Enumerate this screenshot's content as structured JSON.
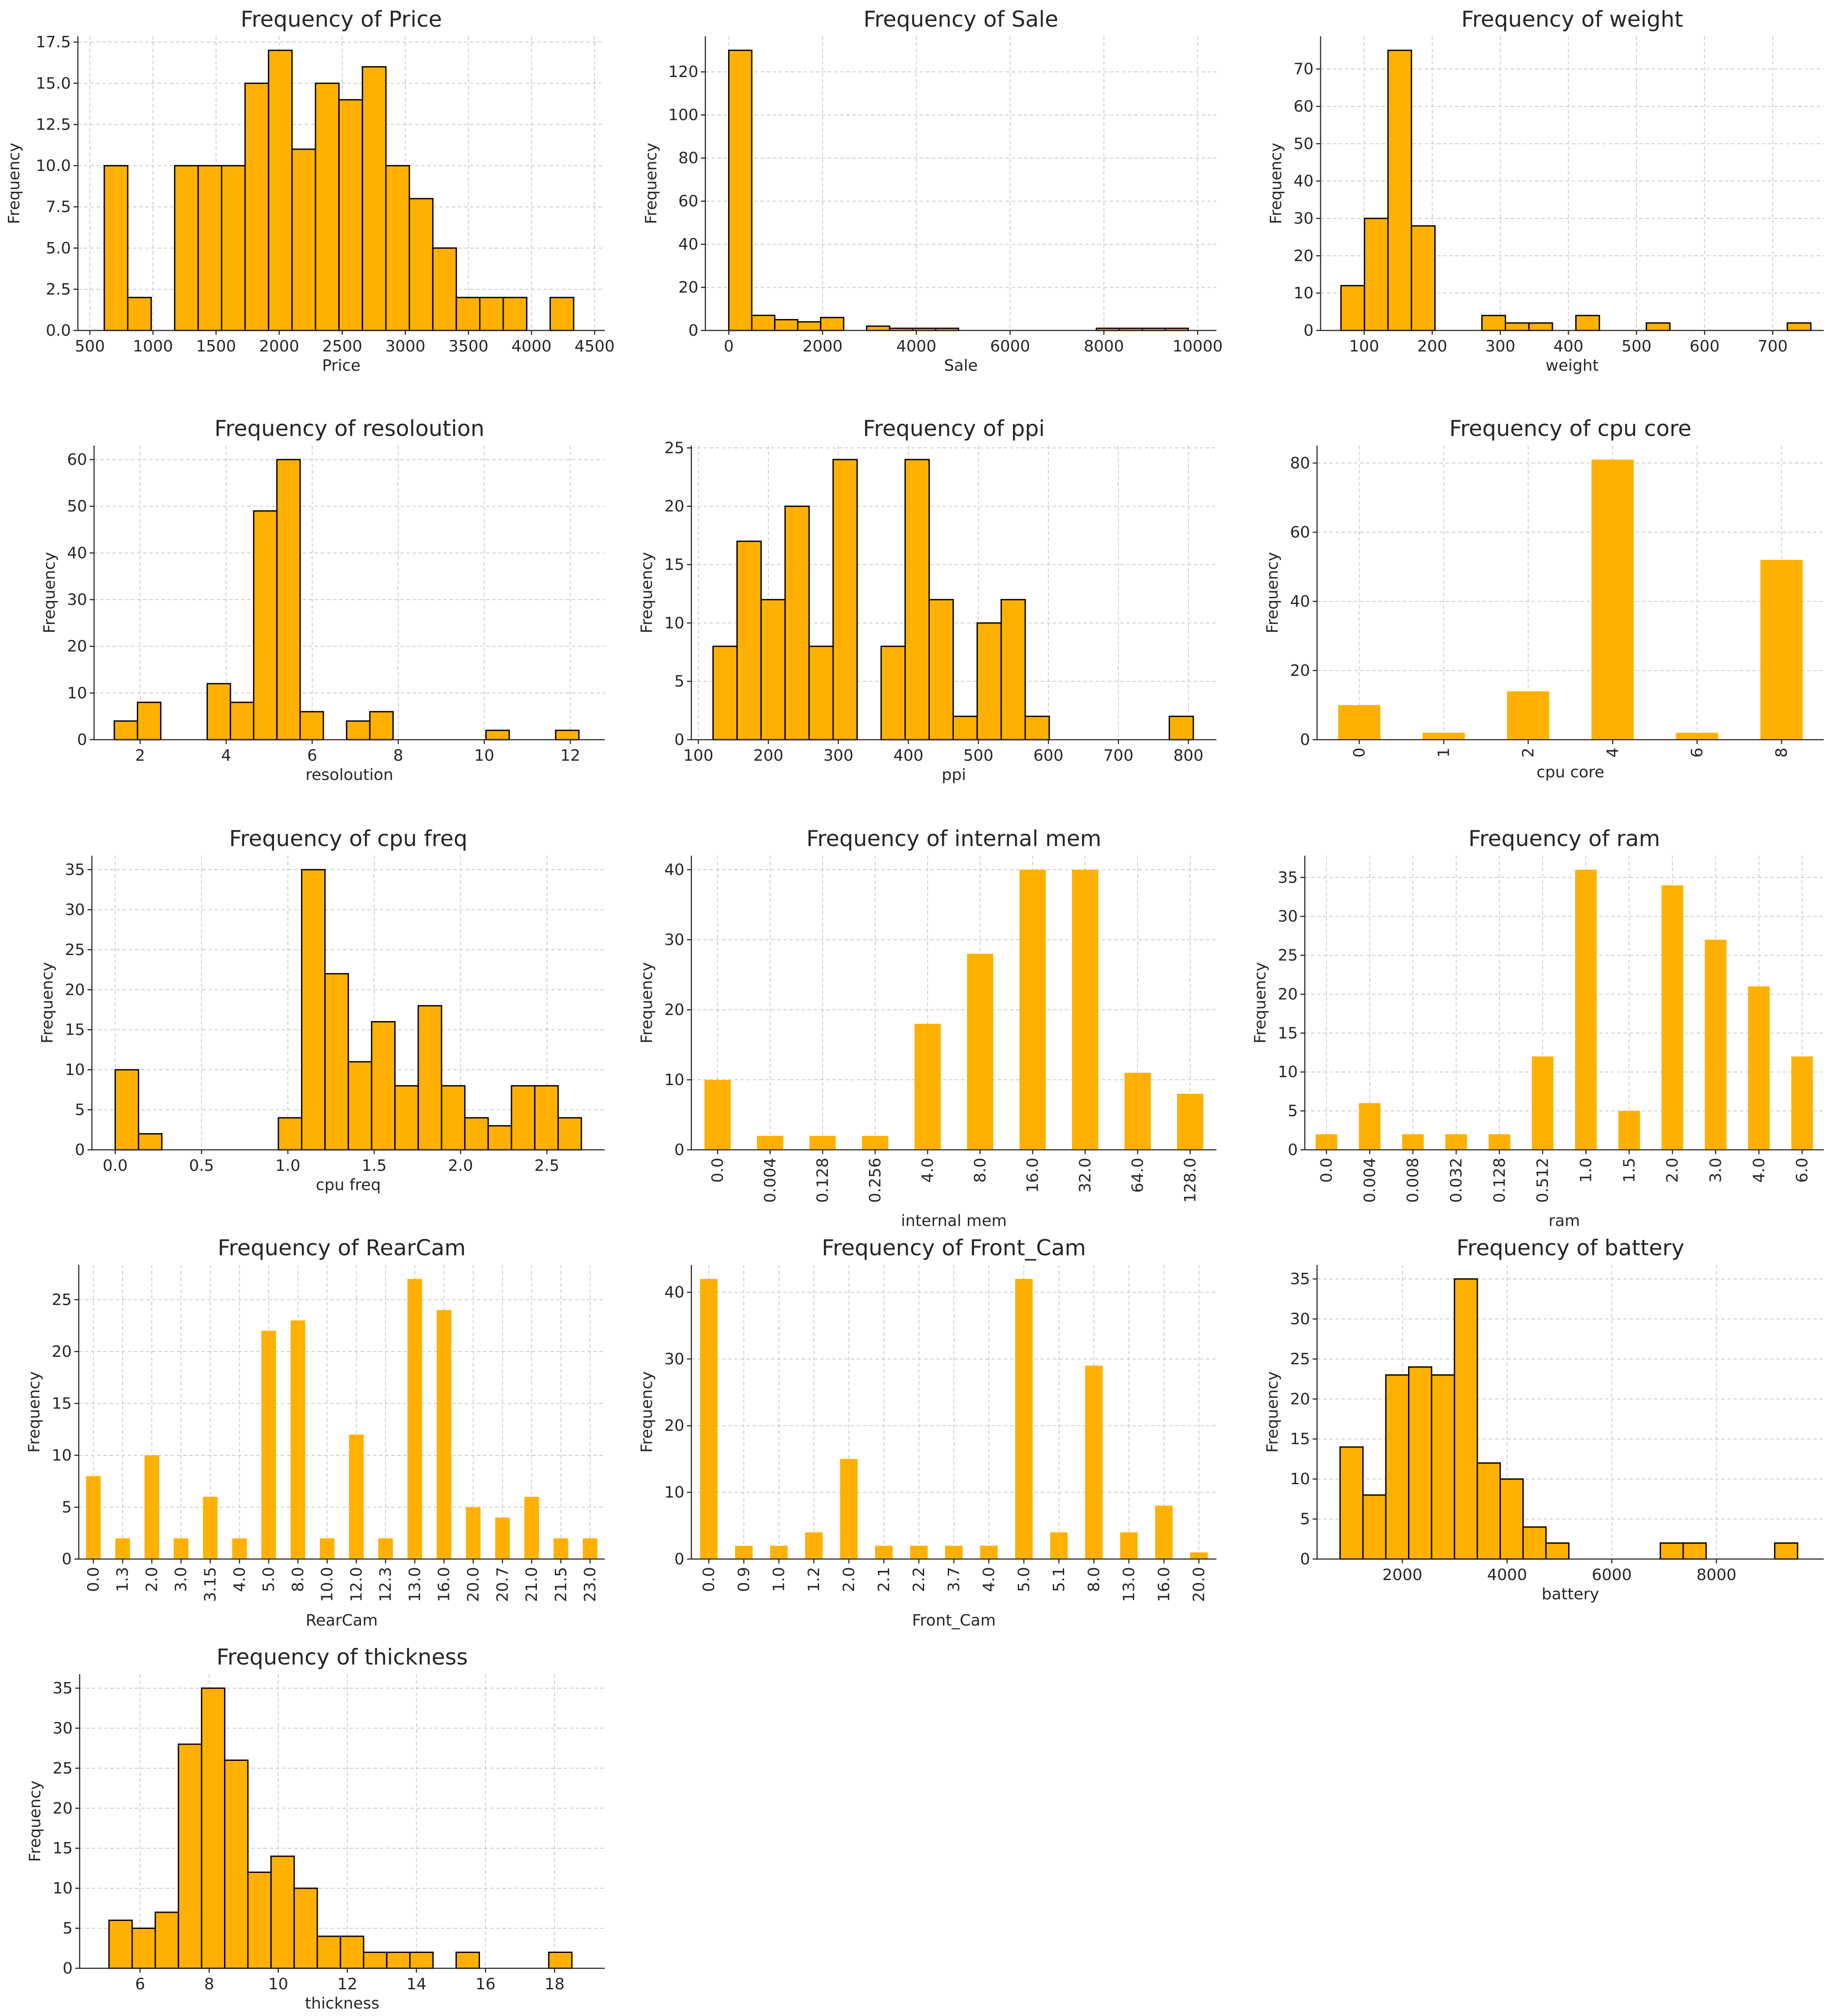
{
  "colors": {
    "bar": "#FFB000",
    "edge": "#000000"
  },
  "chart_data": [
    {
      "type": "bar",
      "variant": "histogram",
      "title": "Frequency of Price",
      "xlabel": "Price",
      "ylabel": "Frequency",
      "xlim": [
        405,
        4580
      ],
      "ylim": [
        0,
        17.85
      ],
      "xticks": [
        500,
        1000,
        1500,
        2000,
        2500,
        3000,
        3500,
        4000,
        4500
      ],
      "xtick_labels": [
        "500",
        "1000",
        "1500",
        "2000",
        "2500",
        "3000",
        "3500",
        "4000",
        "4500"
      ],
      "yticks": [
        0,
        2.5,
        5,
        7.5,
        10,
        12.5,
        15,
        17.5
      ],
      "ytick_labels": [
        "0.0",
        "2.5",
        "5.0",
        "7.5",
        "10.0",
        "12.5",
        "15.0",
        "17.5"
      ],
      "bin_start": 614,
      "bin_width": 186,
      "edges": true,
      "grid": true,
      "values": [
        10,
        2,
        0,
        10,
        10,
        10,
        15,
        17,
        11,
        15,
        14,
        16,
        10,
        8,
        5,
        2,
        2,
        2,
        0,
        2
      ]
    },
    {
      "type": "bar",
      "variant": "histogram",
      "title": "Frequency of Sale",
      "xlabel": "Sale",
      "ylabel": "Frequency",
      "xlim": [
        -500,
        10400
      ],
      "ylim": [
        0,
        136.5
      ],
      "xticks": [
        0,
        2000,
        4000,
        6000,
        8000,
        10000
      ],
      "xtick_labels": [
        "0",
        "2000",
        "4000",
        "6000",
        "8000",
        "10000"
      ],
      "yticks": [
        0,
        20,
        40,
        60,
        80,
        100,
        120
      ],
      "ytick_labels": [
        "0",
        "20",
        "40",
        "60",
        "80",
        "100",
        "120"
      ],
      "bin_start": 0,
      "bin_width": 490,
      "edges": true,
      "grid": true,
      "values": [
        130,
        7,
        5,
        4,
        6,
        0,
        2,
        1,
        1,
        1,
        0,
        0,
        0,
        0,
        0,
        0,
        1,
        1,
        1,
        1
      ]
    },
    {
      "type": "bar",
      "variant": "histogram",
      "title": "Frequency of weight",
      "xlabel": "weight",
      "ylabel": "Frequency",
      "xlim": [
        36,
        775
      ],
      "ylim": [
        0,
        78.75
      ],
      "xticks": [
        100,
        200,
        300,
        400,
        500,
        600,
        700
      ],
      "xtick_labels": [
        "100",
        "200",
        "300",
        "400",
        "500",
        "600",
        "700"
      ],
      "yticks": [
        0,
        10,
        20,
        30,
        40,
        50,
        60,
        70
      ],
      "ytick_labels": [
        "0",
        "10",
        "20",
        "30",
        "40",
        "50",
        "60",
        "70"
      ],
      "bin_start": 66,
      "bin_width": 34.5,
      "edges": true,
      "grid": true,
      "values": [
        12,
        30,
        75,
        28,
        0,
        0,
        4,
        2,
        2,
        0,
        4,
        0,
        0,
        2,
        0,
        0,
        0,
        0,
        0,
        2
      ]
    },
    {
      "type": "bar",
      "variant": "histogram",
      "title": "Frequency of resoloution",
      "xlabel": "resoloution",
      "ylabel": "Frequency",
      "xlim": [
        0.93,
        12.8
      ],
      "ylim": [
        0,
        63
      ],
      "xticks": [
        2,
        4,
        6,
        8,
        10,
        12
      ],
      "xtick_labels": [
        "2",
        "4",
        "6",
        "8",
        "10",
        "12"
      ],
      "yticks": [
        0,
        10,
        20,
        30,
        40,
        50,
        60
      ],
      "ytick_labels": [
        "0",
        "10",
        "20",
        "30",
        "40",
        "50",
        "60"
      ],
      "bin_start": 1.4,
      "bin_width": 0.54,
      "edges": true,
      "grid": true,
      "values": [
        4,
        8,
        0,
        0,
        12,
        8,
        49,
        60,
        6,
        0,
        4,
        6,
        0,
        0,
        0,
        0,
        2,
        0,
        0,
        2
      ]
    },
    {
      "type": "bar",
      "variant": "histogram",
      "title": "Frequency of ppi",
      "xlabel": "ppi",
      "ylabel": "Frequency",
      "xlim": [
        90,
        840
      ],
      "ylim": [
        0,
        25.2
      ],
      "xticks": [
        100,
        200,
        300,
        400,
        500,
        600,
        700,
        800
      ],
      "xtick_labels": [
        "100",
        "200",
        "300",
        "400",
        "500",
        "600",
        "700",
        "800"
      ],
      "yticks": [
        0,
        5,
        10,
        15,
        20,
        25
      ],
      "ytick_labels": [
        "0",
        "5",
        "10",
        "15",
        "20",
        "25"
      ],
      "bin_start": 121,
      "bin_width": 34.3,
      "edges": true,
      "grid": true,
      "values": [
        8,
        17,
        12,
        20,
        8,
        24,
        0,
        8,
        24,
        12,
        2,
        10,
        12,
        2,
        0,
        0,
        0,
        0,
        0,
        2
      ]
    },
    {
      "type": "bar",
      "variant": "categorical",
      "title": "Frequency of cpu core",
      "xlabel": "cpu core",
      "ylabel": "Frequency",
      "categories": [
        "0",
        "1",
        "2",
        "4",
        "6",
        "8"
      ],
      "values": [
        10,
        2,
        14,
        81,
        2,
        52
      ],
      "ylim": [
        0,
        85.05
      ],
      "yticks": [
        0,
        20,
        40,
        60,
        80
      ],
      "ytick_labels": [
        "0",
        "20",
        "40",
        "60",
        "80"
      ],
      "edges": false,
      "rotate_labels": true,
      "grid": true
    },
    {
      "type": "bar",
      "variant": "histogram",
      "title": "Frequency of cpu freq",
      "xlabel": "cpu freq",
      "ylabel": "Frequency",
      "xlim": [
        -0.135,
        2.835
      ],
      "ylim": [
        0,
        36.75
      ],
      "xticks": [
        0,
        0.5,
        1,
        1.5,
        2,
        2.5
      ],
      "xtick_labels": [
        "0.0",
        "0.5",
        "1.0",
        "1.5",
        "2.0",
        "2.5"
      ],
      "yticks": [
        0,
        5,
        10,
        15,
        20,
        25,
        30,
        35
      ],
      "ytick_labels": [
        "0",
        "5",
        "10",
        "15",
        "20",
        "25",
        "30",
        "35"
      ],
      "bin_start": 0,
      "bin_width": 0.135,
      "edges": true,
      "grid": true,
      "values": [
        10,
        2,
        0,
        0,
        0,
        0,
        0,
        4,
        35,
        22,
        11,
        16,
        8,
        18,
        8,
        4,
        3,
        8,
        8,
        4
      ]
    },
    {
      "type": "bar",
      "variant": "categorical",
      "title": "Frequency of internal mem",
      "xlabel": "internal mem",
      "ylabel": "Frequency",
      "categories": [
        "0.0",
        "0.004",
        "0.128",
        "0.256",
        "4.0",
        "8.0",
        "16.0",
        "32.0",
        "64.0",
        "128.0"
      ],
      "values": [
        10,
        2,
        2,
        2,
        18,
        28,
        40,
        40,
        11,
        8
      ],
      "ylim": [
        0,
        42
      ],
      "yticks": [
        0,
        10,
        20,
        30,
        40
      ],
      "ytick_labels": [
        "0",
        "10",
        "20",
        "30",
        "40"
      ],
      "edges": false,
      "rotate_labels": true,
      "grid": true
    },
    {
      "type": "bar",
      "variant": "categorical",
      "title": "Frequency of ram",
      "xlabel": "ram",
      "ylabel": "Frequency",
      "categories": [
        "0.0",
        "0.004",
        "0.008",
        "0.032",
        "0.128",
        "0.512",
        "1.0",
        "1.5",
        "2.0",
        "3.0",
        "4.0",
        "6.0"
      ],
      "values": [
        2,
        6,
        2,
        2,
        2,
        12,
        36,
        5,
        34,
        27,
        21,
        12
      ],
      "ylim": [
        0,
        37.8
      ],
      "yticks": [
        0,
        5,
        10,
        15,
        20,
        25,
        30,
        35
      ],
      "ytick_labels": [
        "0",
        "5",
        "10",
        "15",
        "20",
        "25",
        "30",
        "35"
      ],
      "edges": false,
      "rotate_labels": true,
      "grid": true
    },
    {
      "type": "bar",
      "variant": "categorical",
      "title": "Frequency of RearCam",
      "xlabel": "RearCam",
      "ylabel": "Frequency",
      "categories": [
        "0.0",
        "1.3",
        "2.0",
        "3.0",
        "3.15",
        "4.0",
        "5.0",
        "8.0",
        "10.0",
        "12.0",
        "12.3",
        "13.0",
        "16.0",
        "20.0",
        "20.7",
        "21.0",
        "21.5",
        "23.0"
      ],
      "values": [
        8,
        2,
        10,
        2,
        6,
        2,
        22,
        23,
        2,
        12,
        2,
        27,
        24,
        5,
        4,
        6,
        2,
        2
      ],
      "ylim": [
        0,
        28.35
      ],
      "yticks": [
        0,
        5,
        10,
        15,
        20,
        25
      ],
      "ytick_labels": [
        "0",
        "5",
        "10",
        "15",
        "20",
        "25"
      ],
      "edges": false,
      "rotate_labels": true,
      "grid": true
    },
    {
      "type": "bar",
      "variant": "categorical",
      "title": "Frequency of Front_Cam",
      "xlabel": "Front_Cam",
      "ylabel": "Frequency",
      "categories": [
        "0.0",
        "0.9",
        "1.0",
        "1.2",
        "2.0",
        "2.1",
        "2.2",
        "3.7",
        "4.0",
        "5.0",
        "5.1",
        "8.0",
        "13.0",
        "16.0",
        "20.0"
      ],
      "values": [
        42,
        2,
        2,
        4,
        15,
        2,
        2,
        2,
        2,
        42,
        4,
        29,
        4,
        8,
        1
      ],
      "ylim": [
        0,
        44.1
      ],
      "yticks": [
        0,
        10,
        20,
        30,
        40
      ],
      "ytick_labels": [
        "0",
        "10",
        "20",
        "30",
        "40"
      ],
      "edges": false,
      "rotate_labels": true,
      "grid": true
    },
    {
      "type": "bar",
      "variant": "histogram",
      "title": "Frequency of battery",
      "xlabel": "battery",
      "ylabel": "Frequency",
      "xlim": [
        370,
        10050
      ],
      "ylim": [
        0,
        36.75
      ],
      "xticks": [
        2000,
        4000,
        6000,
        8000
      ],
      "xtick_labels": [
        "2000",
        "4000",
        "6000",
        "8000"
      ],
      "yticks": [
        0,
        5,
        10,
        15,
        20,
        25,
        30,
        35
      ],
      "ytick_labels": [
        "0",
        "5",
        "10",
        "15",
        "20",
        "25",
        "30",
        "35"
      ],
      "bin_start": 810,
      "bin_width": 437,
      "edges": true,
      "grid": true,
      "values": [
        14,
        8,
        23,
        24,
        23,
        35,
        12,
        10,
        4,
        2,
        0,
        0,
        0,
        0,
        2,
        2,
        0,
        0,
        0,
        2
      ]
    },
    {
      "type": "bar",
      "variant": "histogram",
      "title": "Frequency of thickness",
      "xlabel": "thickness",
      "ylabel": "Frequency",
      "xlim": [
        4.25,
        19.45
      ],
      "ylim": [
        0,
        36.75
      ],
      "xticks": [
        6,
        8,
        10,
        12,
        14,
        16,
        18
      ],
      "xtick_labels": [
        "6",
        "8",
        "10",
        "12",
        "14",
        "16",
        "18"
      ],
      "yticks": [
        0,
        5,
        10,
        15,
        20,
        25,
        30,
        35
      ],
      "ytick_labels": [
        "0",
        "5",
        "10",
        "15",
        "20",
        "25",
        "30",
        "35"
      ],
      "bin_start": 5.1,
      "bin_width": 0.67,
      "edges": true,
      "grid": true,
      "values": [
        6,
        5,
        7,
        28,
        35,
        26,
        12,
        14,
        10,
        4,
        4,
        2,
        2,
        2,
        0,
        2,
        0,
        0,
        0,
        2
      ]
    }
  ]
}
